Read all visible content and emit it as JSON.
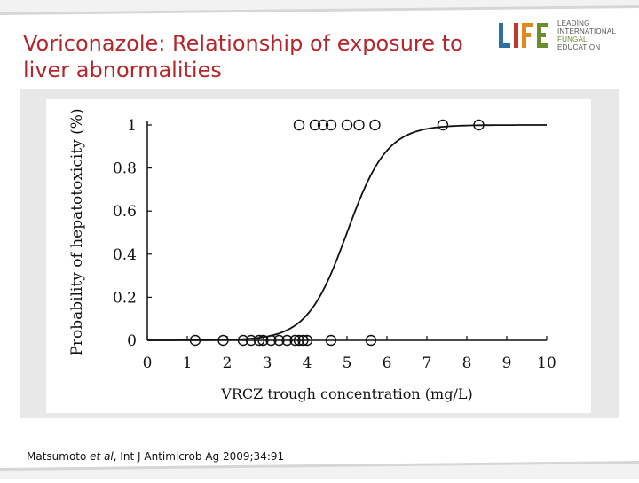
{
  "slide": {
    "title": "Voriconazole: Relationship of exposure to liver abnormalities",
    "citation_prefix": "Matsumoto ",
    "citation_etal": "et al",
    "citation_suffix": ", Int J Antimicrob Ag 2009;34:91"
  },
  "logo": {
    "mark": "LIFE",
    "lines": [
      "LEADING",
      "INTERNATIONAL",
      "FUNGAL",
      "EDUCATION"
    ]
  },
  "colors": {
    "title": "#b3262c",
    "logo_green": "#6a8d2f",
    "logo_blue": "#2f6fa3",
    "logo_red": "#c0392b",
    "logo_orange": "#e08a1e"
  },
  "chart_data": {
    "type": "scatter",
    "xlabel": "VRCZ trough concentration (mg/L)",
    "ylabel": "Probability of hepatotoxicity (%)",
    "xlim": [
      0,
      10
    ],
    "ylim": [
      0,
      1
    ],
    "xticks": [
      "0",
      "1",
      "2",
      "3",
      "4",
      "5",
      "6",
      "7",
      "8",
      "9",
      "10"
    ],
    "yticks": [
      "0",
      "0.2",
      "0.4",
      "0.6",
      "0.8",
      "1"
    ],
    "curve": {
      "type": "logistic",
      "midpoint": 5.0,
      "slope": 2.0
    },
    "points_y1": [
      3.8,
      4.2,
      4.4,
      4.6,
      5.0,
      5.3,
      5.7,
      7.4,
      8.3
    ],
    "points_y0": [
      1.2,
      1.9,
      2.4,
      2.6,
      2.8,
      2.9,
      3.1,
      3.3,
      3.5,
      3.7,
      3.8,
      3.9,
      4.0,
      4.6,
      5.6
    ]
  }
}
